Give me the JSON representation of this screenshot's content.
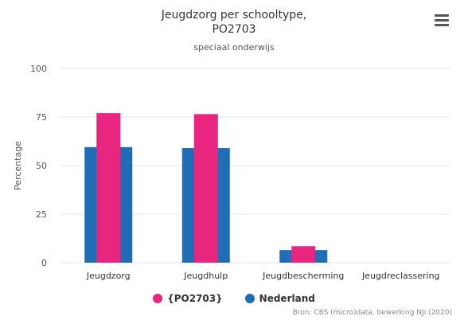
{
  "title_line1": "Jeugdzorg per schooltype,",
  "title_line2": "PO2703",
  "subtitle": "speciaal onderwijs",
  "credits": "Bron: CBS (micro)data, bewerking NJi (2020)",
  "menu_icon": "hamburger-menu-icon",
  "chart_data": {
    "type": "bar",
    "title": "Jeugdzorg per schooltype, PO2703",
    "subtitle": "speciaal onderwijs",
    "xlabel": "",
    "ylabel": "Percentage",
    "ylim": [
      0,
      100
    ],
    "yticks": [
      0,
      25,
      50,
      75,
      100
    ],
    "grid": true,
    "legend_position": "bottom-center",
    "categories": [
      "Jeugdzorg",
      "Jeugdhulp",
      "Jeugdbescherming",
      "Jeugdreclassering"
    ],
    "series": [
      {
        "name": "Nederland",
        "color": "#1f6db5",
        "values": [
          59.5,
          59.0,
          6.5,
          0
        ]
      },
      {
        "name": "{PO2703}",
        "color": "#e8267f",
        "values": [
          77.0,
          76.5,
          8.5,
          0
        ]
      }
    ],
    "legend_order": [
      "{PO2703}",
      "Nederland"
    ]
  }
}
